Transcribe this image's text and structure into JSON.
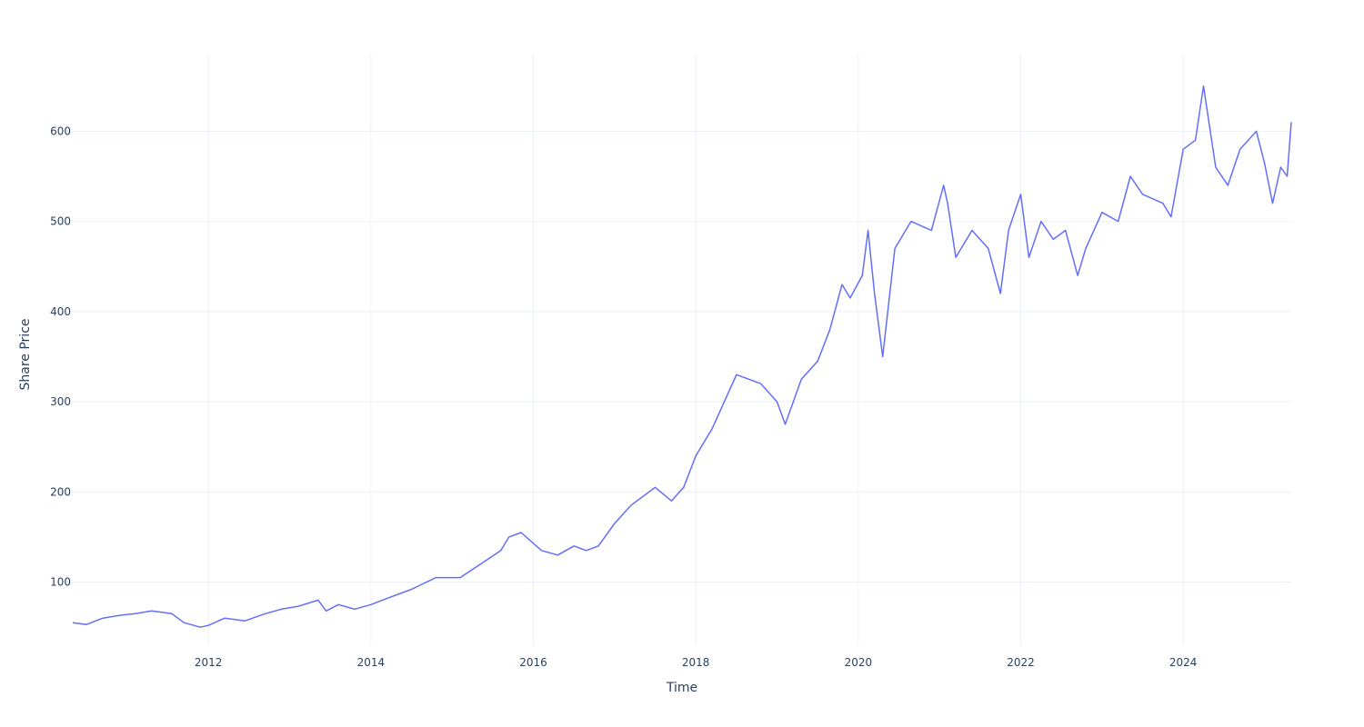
{
  "chart_data": {
    "type": "line",
    "title": "",
    "xlabel": "Time",
    "ylabel": "Share Price",
    "xlim": [
      2010.33,
      2025.33
    ],
    "ylim": [
      30,
      685
    ],
    "grid": true,
    "legend": "none",
    "colors": {
      "line": "#636efa",
      "grid": "#ebf0f8",
      "text": "#2a3f5f",
      "background": "#ffffff"
    },
    "x_ticks": [
      2012,
      2014,
      2016,
      2018,
      2020,
      2022,
      2024
    ],
    "x_tick_labels": [
      "2012",
      "2014",
      "2016",
      "2018",
      "2020",
      "2022",
      "2024"
    ],
    "y_ticks": [
      100,
      200,
      300,
      400,
      500,
      600
    ],
    "y_tick_labels": [
      "100",
      "200",
      "300",
      "400",
      "500",
      "600"
    ],
    "series": [
      {
        "x": [
          2010.33,
          2010.5,
          2010.7,
          2010.9,
          2011.1,
          2011.3,
          2011.55,
          2011.7,
          2011.9,
          2012.0,
          2012.2,
          2012.45,
          2012.7,
          2012.9,
          2013.1,
          2013.35,
          2013.45,
          2013.6,
          2013.8,
          2014.0,
          2014.2,
          2014.5,
          2014.8,
          2015.1,
          2015.35,
          2015.6,
          2015.7,
          2015.85,
          2016.1,
          2016.3,
          2016.5,
          2016.65,
          2016.8,
          2017.0,
          2017.2,
          2017.5,
          2017.7,
          2017.85,
          2018.0,
          2018.2,
          2018.35,
          2018.5,
          2018.8,
          2019.0,
          2019.1,
          2019.3,
          2019.5,
          2019.65,
          2019.8,
          2019.9,
          2020.05,
          2020.12,
          2020.2,
          2020.3,
          2020.45,
          2020.65,
          2020.9,
          2021.05,
          2021.1,
          2021.2,
          2021.4,
          2021.6,
          2021.75,
          2021.85,
          2022.0,
          2022.1,
          2022.25,
          2022.4,
          2022.55,
          2022.7,
          2022.8,
          2023.0,
          2023.2,
          2023.35,
          2023.5,
          2023.75,
          2023.85,
          2024.0,
          2024.15,
          2024.25,
          2024.4,
          2024.55,
          2024.7,
          2024.9,
          2025.0,
          2025.1,
          2025.2,
          2025.28,
          2025.33
        ],
        "y": [
          55,
          53,
          60,
          63,
          65,
          68,
          65,
          55,
          50,
          52,
          60,
          57,
          65,
          70,
          73,
          80,
          68,
          75,
          70,
          75,
          82,
          92,
          105,
          105,
          120,
          135,
          150,
          155,
          135,
          130,
          140,
          135,
          140,
          165,
          185,
          205,
          190,
          205,
          240,
          270,
          300,
          330,
          320,
          300,
          275,
          325,
          345,
          380,
          430,
          415,
          440,
          490,
          420,
          350,
          470,
          500,
          490,
          540,
          520,
          460,
          490,
          470,
          420,
          490,
          530,
          460,
          500,
          480,
          490,
          440,
          470,
          510,
          500,
          550,
          530,
          520,
          505,
          580,
          590,
          650,
          560,
          540,
          580,
          600,
          565,
          520,
          560,
          550,
          610
        ]
      }
    ]
  }
}
